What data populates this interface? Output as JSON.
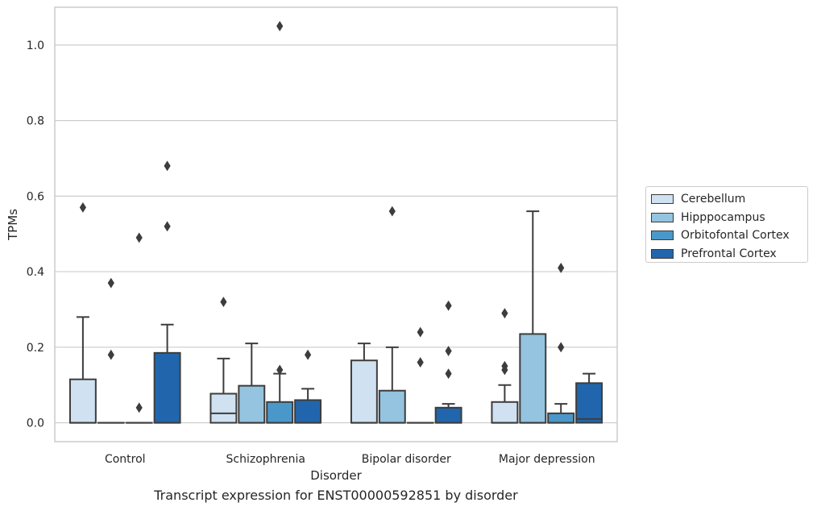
{
  "caption": "Transcript expression for ENST00000592851 by disorder",
  "chart_data": {
    "type": "box",
    "xlabel": "Disorder",
    "ylabel": "TPMs",
    "ylim": [
      -0.05,
      1.1
    ],
    "yticks": [
      0.0,
      0.2,
      0.4,
      0.6,
      0.8,
      1.0
    ],
    "ytick_labels": [
      "0.0",
      "0.2",
      "0.4",
      "0.6",
      "0.8",
      "1.0"
    ],
    "grid": "horizontal",
    "legend_position": "right",
    "categories": [
      "Control",
      "Schizophrenia",
      "Bipolar disorder",
      "Major depression"
    ],
    "series": [
      {
        "name": "Cerebellum",
        "color": "#d0e1f2",
        "boxes": [
          {
            "q1": 0.0,
            "median": 0.0,
            "q3": 0.115,
            "whislo": 0.0,
            "whishi": 0.28,
            "fliers": [
              0.57
            ]
          },
          {
            "q1": 0.0,
            "median": 0.025,
            "q3": 0.077,
            "whislo": 0.0,
            "whishi": 0.17,
            "fliers": [
              0.32
            ]
          },
          {
            "q1": 0.0,
            "median": 0.0,
            "q3": 0.165,
            "whislo": 0.0,
            "whishi": 0.21,
            "fliers": []
          },
          {
            "q1": 0.0,
            "median": 0.0,
            "q3": 0.055,
            "whislo": 0.0,
            "whishi": 0.1,
            "fliers": [
              0.29,
              0.15,
              0.14
            ]
          }
        ]
      },
      {
        "name": "Hipppocampus",
        "color": "#94c4df",
        "boxes": [
          {
            "q1": 0.0,
            "median": 0.0,
            "q3": 0.0,
            "whislo": 0.0,
            "whishi": 0.0,
            "fliers": [
              0.37,
              0.18
            ]
          },
          {
            "q1": 0.0,
            "median": 0.0,
            "q3": 0.098,
            "whislo": 0.0,
            "whishi": 0.21,
            "fliers": []
          },
          {
            "q1": 0.0,
            "median": 0.0,
            "q3": 0.085,
            "whislo": 0.0,
            "whishi": 0.2,
            "fliers": [
              0.56
            ]
          },
          {
            "q1": 0.0,
            "median": 0.0,
            "q3": 0.235,
            "whislo": 0.0,
            "whishi": 0.56,
            "fliers": []
          }
        ]
      },
      {
        "name": "Orbitofontal Cortex",
        "color": "#4a98c9",
        "boxes": [
          {
            "q1": 0.0,
            "median": 0.0,
            "q3": 0.0,
            "whislo": 0.0,
            "whishi": 0.0,
            "fliers": [
              0.49,
              0.04
            ]
          },
          {
            "q1": 0.0,
            "median": 0.0,
            "q3": 0.055,
            "whislo": 0.0,
            "whishi": 0.13,
            "fliers": [
              1.05,
              0.14
            ]
          },
          {
            "q1": 0.0,
            "median": 0.0,
            "q3": 0.0,
            "whislo": 0.0,
            "whishi": 0.0,
            "fliers": [
              0.24,
              0.16
            ]
          },
          {
            "q1": 0.0,
            "median": 0.0,
            "q3": 0.025,
            "whislo": 0.0,
            "whishi": 0.05,
            "fliers": [
              0.41,
              0.2
            ]
          }
        ]
      },
      {
        "name": "Prefrontal Cortex",
        "color": "#2166ac",
        "boxes": [
          {
            "q1": 0.0,
            "median": 0.0,
            "q3": 0.185,
            "whislo": 0.0,
            "whishi": 0.26,
            "fliers": [
              0.68,
              0.52
            ]
          },
          {
            "q1": 0.0,
            "median": 0.0,
            "q3": 0.06,
            "whislo": 0.0,
            "whishi": 0.09,
            "fliers": [
              0.18
            ]
          },
          {
            "q1": 0.0,
            "median": 0.0,
            "q3": 0.04,
            "whislo": 0.0,
            "whishi": 0.05,
            "fliers": [
              0.31,
              0.19,
              0.13
            ]
          },
          {
            "q1": 0.0,
            "median": 0.01,
            "q3": 0.105,
            "whislo": 0.0,
            "whishi": 0.13,
            "fliers": []
          }
        ]
      }
    ]
  }
}
